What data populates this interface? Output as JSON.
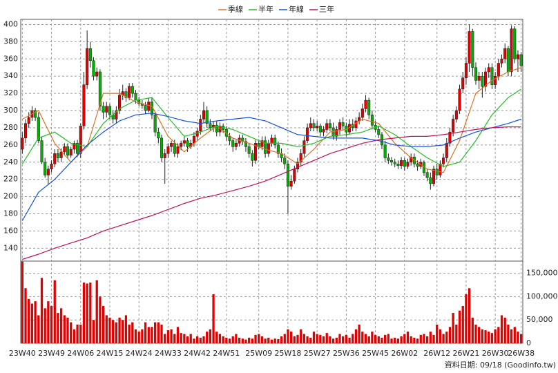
{
  "chart_data": {
    "type": "candlestick",
    "categories": [
      "23W40",
      null,
      null,
      null,
      null,
      null,
      null,
      null,
      null,
      "23W49",
      null,
      null,
      null,
      null,
      null,
      null,
      null,
      null,
      "24W06",
      null,
      null,
      null,
      null,
      null,
      null,
      null,
      null,
      "24W15",
      null,
      null,
      null,
      null,
      null,
      null,
      null,
      null,
      "24W24",
      null,
      null,
      null,
      null,
      null,
      null,
      null,
      null,
      "24W33",
      null,
      null,
      null,
      null,
      null,
      null,
      null,
      null,
      "24W42",
      null,
      null,
      null,
      null,
      null,
      null,
      null,
      null,
      "24W51",
      null,
      null,
      null,
      null,
      null,
      null,
      null,
      null,
      null,
      "25W09",
      null,
      null,
      null,
      null,
      null,
      null,
      null,
      null,
      "25W18",
      null,
      null,
      null,
      null,
      null,
      null,
      null,
      null,
      "25W27",
      null,
      null,
      null,
      null,
      null,
      null,
      null,
      null,
      "25W36",
      null,
      null,
      null,
      null,
      null,
      null,
      null,
      null,
      "25W45",
      null,
      null,
      null,
      null,
      null,
      null,
      null,
      null,
      "26W02",
      null,
      null,
      null,
      null,
      null,
      null,
      null,
      null,
      null,
      "26W12",
      null,
      null,
      null,
      null,
      null,
      null,
      null,
      null,
      "26W21",
      null,
      null,
      null,
      null,
      null,
      null,
      null,
      null,
      "26W30",
      null,
      null,
      null,
      null,
      null,
      null,
      null,
      "26W38"
    ],
    "open": [
      255,
      268,
      285,
      292,
      300,
      292,
      265,
      240,
      225,
      232,
      238,
      250,
      245,
      252,
      258,
      248,
      255,
      262,
      250,
      282,
      330,
      372,
      358,
      340,
      345,
      305,
      298,
      305,
      295,
      290,
      300,
      318,
      322,
      315,
      328,
      320,
      312,
      308,
      306,
      300,
      310,
      295,
      275,
      268,
      245,
      250,
      258,
      262,
      250,
      258,
      262,
      265,
      258,
      262,
      270,
      276,
      290,
      300,
      285,
      280,
      283,
      275,
      282,
      278,
      270,
      265,
      258,
      262,
      268,
      264,
      258,
      250,
      242,
      262,
      258,
      265,
      250,
      262,
      268,
      260,
      250,
      245,
      238,
      212,
      218,
      232,
      240,
      250,
      265,
      280,
      285,
      280,
      282,
      275,
      278,
      285,
      280,
      270,
      278,
      286,
      282,
      275,
      284,
      280,
      288,
      292,
      302,
      312,
      295,
      283,
      278,
      272,
      260,
      245,
      242,
      240,
      238,
      236,
      242,
      235,
      240,
      246,
      238,
      235,
      240,
      228,
      222,
      215,
      232,
      225,
      238,
      245,
      262,
      275,
      290,
      300,
      325,
      338,
      355,
      392,
      350,
      335,
      340,
      328,
      345,
      350,
      330,
      340,
      355,
      360,
      372,
      345,
      395,
      360,
      365
    ],
    "high": [
      275,
      290,
      298,
      305,
      303,
      298,
      270,
      245,
      236,
      242,
      255,
      255,
      256,
      262,
      262,
      258,
      265,
      266,
      285,
      345,
      393,
      380,
      362,
      350,
      348,
      310,
      310,
      308,
      300,
      305,
      325,
      330,
      326,
      332,
      332,
      324,
      316,
      312,
      310,
      315,
      315,
      298,
      280,
      272,
      255,
      262,
      265,
      266,
      262,
      265,
      270,
      268,
      266,
      275,
      280,
      295,
      310,
      305,
      290,
      288,
      288,
      286,
      285,
      282,
      274,
      268,
      266,
      272,
      272,
      268,
      262,
      254,
      266,
      266,
      270,
      270,
      266,
      272,
      272,
      264,
      256,
      250,
      242,
      225,
      236,
      245,
      255,
      270,
      285,
      292,
      290,
      288,
      285,
      282,
      290,
      290,
      286,
      282,
      290,
      292,
      286,
      290,
      290,
      292,
      298,
      308,
      318,
      315,
      300,
      288,
      282,
      275,
      265,
      250,
      246,
      244,
      242,
      246,
      245,
      244,
      250,
      250,
      242,
      244,
      242,
      232,
      228,
      236,
      238,
      242,
      250,
      268,
      280,
      295,
      305,
      330,
      345,
      362,
      400,
      395,
      356,
      345,
      345,
      350,
      355,
      355,
      345,
      360,
      365,
      378,
      375,
      399,
      398,
      370,
      368
    ],
    "low": [
      250,
      262,
      280,
      288,
      288,
      262,
      238,
      222,
      214,
      228,
      234,
      240,
      240,
      248,
      244,
      245,
      250,
      246,
      245,
      278,
      325,
      350,
      335,
      335,
      300,
      290,
      292,
      290,
      285,
      285,
      296,
      312,
      310,
      312,
      315,
      308,
      305,
      302,
      296,
      298,
      290,
      270,
      262,
      240,
      215,
      245,
      252,
      246,
      245,
      254,
      258,
      252,
      255,
      258,
      266,
      272,
      286,
      280,
      276,
      275,
      270,
      270,
      274,
      265,
      260,
      252,
      254,
      258,
      260,
      252,
      245,
      235,
      238,
      255,
      254,
      245,
      246,
      258,
      256,
      245,
      240,
      232,
      180,
      208,
      215,
      228,
      236,
      246,
      262,
      276,
      276,
      276,
      270,
      270,
      274,
      276,
      266,
      265,
      272,
      278,
      270,
      272,
      276,
      276,
      284,
      288,
      298,
      290,
      278,
      275,
      268,
      255,
      240,
      238,
      236,
      234,
      232,
      232,
      230,
      232,
      236,
      234,
      230,
      232,
      224,
      218,
      208,
      212,
      220,
      222,
      234,
      240,
      258,
      270,
      286,
      296,
      320,
      330,
      345,
      340,
      330,
      325,
      315,
      322,
      338,
      325,
      325,
      335,
      350,
      355,
      340,
      340,
      355,
      345,
      345
    ],
    "close": [
      268,
      285,
      292,
      300,
      292,
      265,
      240,
      225,
      232,
      238,
      250,
      245,
      252,
      258,
      248,
      255,
      262,
      250,
      282,
      330,
      372,
      358,
      340,
      345,
      305,
      298,
      305,
      295,
      290,
      300,
      318,
      322,
      315,
      328,
      320,
      312,
      308,
      306,
      300,
      310,
      295,
      275,
      268,
      245,
      250,
      258,
      262,
      250,
      258,
      262,
      265,
      258,
      262,
      270,
      276,
      290,
      300,
      285,
      280,
      283,
      275,
      282,
      278,
      270,
      265,
      258,
      262,
      268,
      264,
      258,
      250,
      242,
      262,
      258,
      265,
      250,
      262,
      268,
      260,
      250,
      245,
      238,
      212,
      218,
      232,
      240,
      250,
      265,
      280,
      285,
      280,
      282,
      275,
      278,
      285,
      280,
      270,
      278,
      286,
      282,
      275,
      284,
      280,
      288,
      292,
      302,
      312,
      295,
      283,
      278,
      272,
      260,
      245,
      242,
      240,
      238,
      236,
      242,
      235,
      240,
      246,
      238,
      235,
      240,
      228,
      222,
      215,
      232,
      225,
      238,
      245,
      262,
      275,
      290,
      300,
      325,
      338,
      355,
      392,
      350,
      335,
      340,
      328,
      345,
      350,
      330,
      340,
      355,
      360,
      372,
      345,
      395,
      360,
      365,
      352
    ],
    "up_color": "#e00000",
    "down_color": "#00b000",
    "wick_color": "#202020",
    "series": [
      {
        "name": "季線",
        "color": "#e07020",
        "x": [
          0,
          5,
          10,
          15,
          20,
          25,
          30,
          35,
          40,
          45,
          50,
          55,
          60,
          65,
          70,
          75,
          80,
          85,
          90,
          95,
          100,
          105,
          110,
          115,
          120,
          125,
          130,
          135,
          140,
          145,
          150,
          154
        ],
        "values": [
          290,
          300,
          262,
          240,
          258,
          320,
          320,
          310,
          305,
          270,
          252,
          268,
          282,
          268,
          262,
          255,
          250,
          238,
          255,
          275,
          278,
          290,
          285,
          262,
          245,
          232,
          228,
          265,
          320,
          335,
          345,
          350
        ]
      },
      {
        "name": "半年",
        "color": "#20c020",
        "x": [
          0,
          5,
          10,
          15,
          20,
          25,
          30,
          35,
          40,
          45,
          50,
          55,
          60,
          65,
          70,
          75,
          80,
          85,
          90,
          95,
          100,
          105,
          110,
          115,
          120,
          125,
          130,
          135,
          140,
          145,
          150,
          154
        ],
        "values": [
          238,
          268,
          275,
          262,
          258,
          285,
          302,
          312,
          315,
          292,
          270,
          275,
          282,
          278,
          270,
          262,
          262,
          258,
          262,
          270,
          272,
          275,
          282,
          272,
          258,
          245,
          235,
          240,
          265,
          295,
          315,
          325
        ]
      },
      {
        "name": "年線",
        "color": "#1050e0",
        "x": [
          0,
          5,
          10,
          15,
          20,
          25,
          30,
          35,
          40,
          45,
          50,
          55,
          60,
          65,
          70,
          75,
          80,
          85,
          90,
          95,
          100,
          105,
          110,
          115,
          120,
          125,
          130,
          135,
          140,
          145,
          150,
          154
        ],
        "values": [
          172,
          205,
          220,
          240,
          260,
          275,
          288,
          295,
          297,
          293,
          288,
          285,
          288,
          290,
          292,
          288,
          280,
          272,
          270,
          268,
          268,
          268,
          265,
          260,
          258,
          258,
          260,
          268,
          275,
          280,
          285,
          290
        ]
      },
      {
        "name": "三年",
        "color": "#c0105a",
        "x": [
          0,
          5,
          10,
          15,
          20,
          25,
          30,
          35,
          40,
          45,
          50,
          55,
          60,
          65,
          70,
          75,
          80,
          85,
          90,
          95,
          100,
          105,
          110,
          115,
          120,
          125,
          130,
          135,
          140,
          145,
          150,
          154
        ],
        "values": [
          127,
          133,
          140,
          146,
          152,
          160,
          166,
          172,
          178,
          185,
          192,
          198,
          202,
          207,
          212,
          218,
          226,
          234,
          242,
          250,
          256,
          262,
          266,
          268,
          270,
          270,
          272,
          275,
          278,
          280,
          281,
          281
        ]
      }
    ],
    "ylim": [
      125,
      406
    ],
    "yticks": [
      140,
      160,
      180,
      200,
      220,
      240,
      260,
      280,
      300,
      320,
      340,
      360,
      380,
      400
    ],
    "grid": true,
    "legend": "top",
    "volume": {
      "color": "#e00000",
      "values": [
        175000,
        118000,
        95000,
        85000,
        90000,
        60000,
        140000,
        75000,
        90000,
        80000,
        135000,
        65000,
        75000,
        60000,
        55000,
        45000,
        30000,
        40000,
        40000,
        130000,
        128000,
        130000,
        50000,
        135000,
        100000,
        80000,
        60000,
        55000,
        50000,
        45000,
        55000,
        50000,
        60000,
        40000,
        45000,
        30000,
        25000,
        30000,
        45000,
        35000,
        35000,
        45000,
        45000,
        40000,
        20000,
        28000,
        30000,
        20000,
        35000,
        22000,
        20000,
        15000,
        20000,
        10000,
        15000,
        12000,
        15000,
        25000,
        30000,
        105000,
        25000,
        20000,
        15000,
        12000,
        10000,
        15000,
        20000,
        12000,
        10000,
        8000,
        12000,
        10000,
        18000,
        20000,
        15000,
        10000,
        12000,
        8000,
        10000,
        9000,
        15000,
        20000,
        30000,
        25000,
        15000,
        18000,
        30000,
        20000,
        15000,
        12000,
        25000,
        20000,
        18000,
        15000,
        22000,
        15000,
        10000,
        12000,
        20000,
        15000,
        18000,
        12000,
        20000,
        30000,
        40000,
        25000,
        20000,
        15000,
        25000,
        18000,
        15000,
        12000,
        18000,
        20000,
        10000,
        12000,
        10000,
        15000,
        20000,
        25000,
        15000,
        12000,
        10000,
        18000,
        20000,
        15000,
        25000,
        18000,
        40000,
        30000,
        20000,
        25000,
        35000,
        65000,
        40000,
        70000,
        80000,
        105000,
        118000,
        55000,
        40000,
        35000,
        30000,
        28000,
        25000,
        22000,
        30000,
        35000,
        60000,
        55000,
        40000,
        30000,
        35000,
        25000,
        20000
      ],
      "ylim": [
        0,
        176000
      ],
      "yticks": [
        {
          "value": 0,
          "label": "0"
        },
        {
          "value": 50000,
          "label": "50,000"
        },
        {
          "value": 100000,
          "label": "100,000"
        },
        {
          "value": 150000,
          "label": "150,000"
        }
      ]
    },
    "footnote": "資料日期: 09/18 (Goodinfo.tw)"
  }
}
